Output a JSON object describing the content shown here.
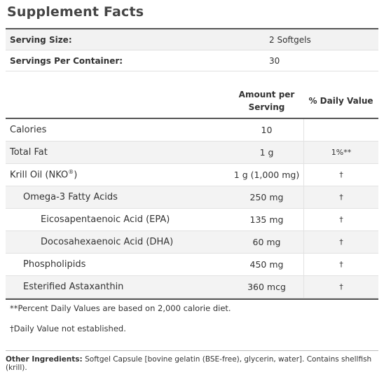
{
  "title": "Supplement Facts",
  "serving": [
    {
      "label": "Serving Size:",
      "value": "2 Softgels"
    },
    {
      "label": "Servings Per Container:",
      "value": "30"
    }
  ],
  "headers": {
    "amount": "Amount per Serving",
    "dv": "% Daily Value"
  },
  "rows": [
    {
      "name": "Calories",
      "amount": "10",
      "dv": ""
    },
    {
      "name": "Total Fat",
      "amount": "1 g",
      "dv": "1%**"
    },
    {
      "name": "Krill Oil (NKO",
      "sup": "®",
      "suffix": ")",
      "amount": "1 g (1,000 mg)",
      "dv": "†"
    },
    {
      "name": "Omega-3 Fatty Acids",
      "amount": "250 mg",
      "dv": "†"
    },
    {
      "name": "Eicosapentaenoic Acid (EPA)",
      "amount": "135 mg",
      "dv": "†"
    },
    {
      "name": "Docosahexaenoic Acid (DHA)",
      "amount": "60 mg",
      "dv": "†"
    },
    {
      "name": "Phospholipids",
      "amount": "450 mg",
      "dv": "†"
    },
    {
      "name": "Esterified Astaxanthin",
      "amount": "360 mcg",
      "dv": "†"
    }
  ],
  "notes": [
    "**Percent Daily Values are based on 2,000 calorie diet.",
    "†Daily Value not established."
  ],
  "other": {
    "label": "Other Ingredients:",
    "text": "Softgel Capsule [bovine gelatin (BSE-free), glycerin, water]. Contains shellfish (krill)."
  }
}
